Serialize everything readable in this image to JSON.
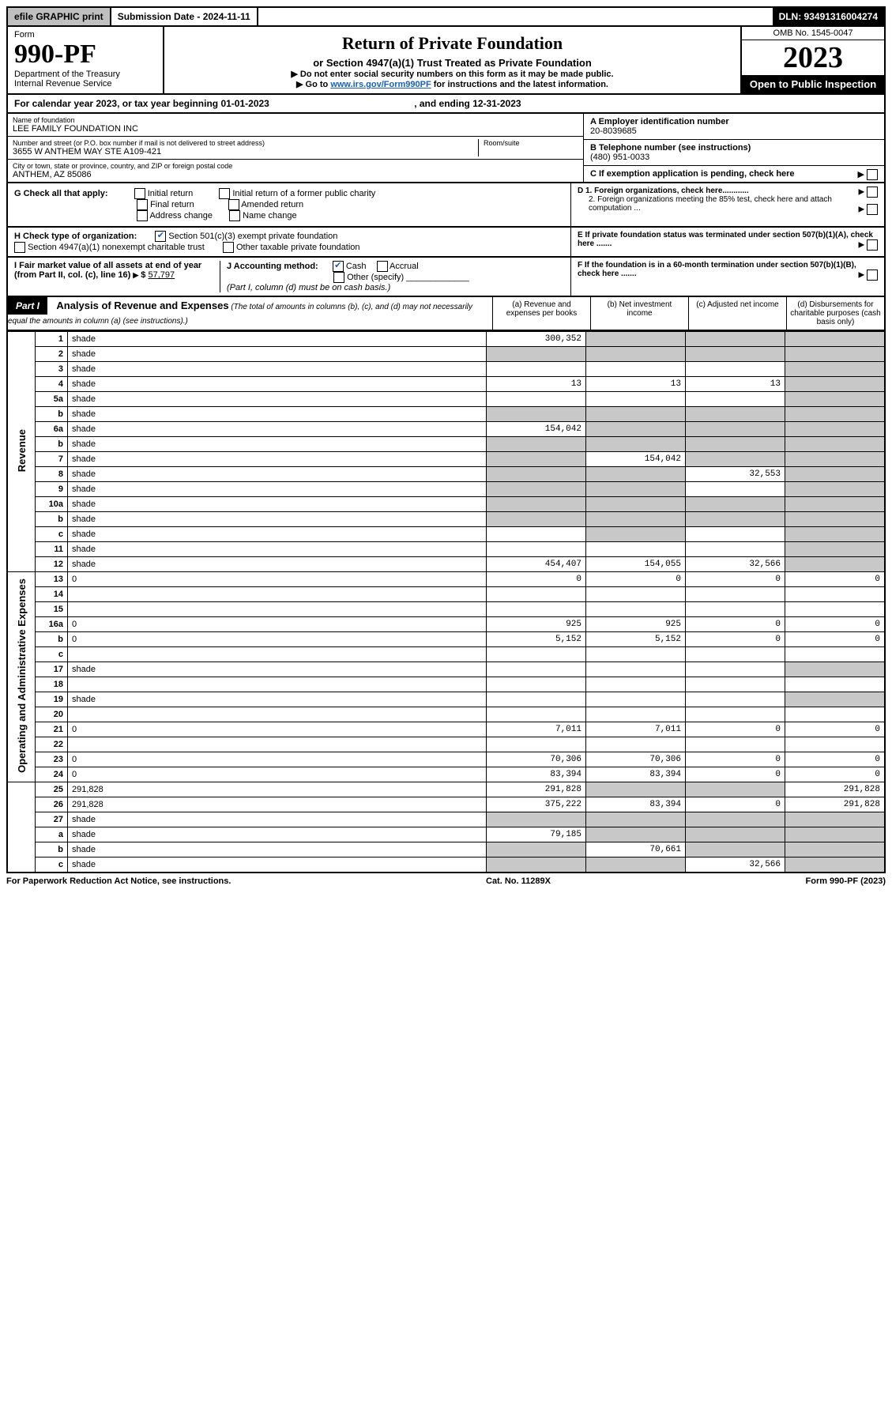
{
  "top": {
    "efile": "efile GRAPHIC print",
    "sub_label": "Submission Date - 2024-11-11",
    "dln": "DLN: 93491316004274"
  },
  "header": {
    "form_word": "Form",
    "form_no": "990-PF",
    "dept1": "Department of the Treasury",
    "dept2": "Internal Revenue Service",
    "title": "Return of Private Foundation",
    "subtitle": "or Section 4947(a)(1) Trust Treated as Private Foundation",
    "instr1": "▶ Do not enter social security numbers on this form as it may be made public.",
    "instr2_pre": "▶ Go to ",
    "instr2_link": "www.irs.gov/Form990PF",
    "instr2_post": " for instructions and the latest information.",
    "omb": "OMB No. 1545-0047",
    "year": "2023",
    "open": "Open to Public Inspection"
  },
  "cal_year": {
    "text_pre": "For calendar year 2023, or tax year beginning ",
    "begin": "01-01-2023",
    "mid": " , and ending ",
    "end": "12-31-2023"
  },
  "entity": {
    "name_lbl": "Name of foundation",
    "name": "LEE FAMILY FOUNDATION INC",
    "addr_lbl": "Number and street (or P.O. box number if mail is not delivered to street address)",
    "addr": "3655 W ANTHEM WAY STE A109-421",
    "room_lbl": "Room/suite",
    "city_lbl": "City or town, state or province, country, and ZIP or foreign postal code",
    "city": "ANTHEM, AZ  85086",
    "a_lbl": "A Employer identification number",
    "ein": "20-8039685",
    "b_lbl": "B Telephone number (see instructions)",
    "phone": "(480) 951-0033",
    "c_lbl": "C If exemption application is pending, check here"
  },
  "g": {
    "lbl": "G Check all that apply:",
    "o1": "Initial return",
    "o2": "Initial return of a former public charity",
    "o3": "Final return",
    "o4": "Amended return",
    "o5": "Address change",
    "o6": "Name change"
  },
  "d": {
    "d1": "D 1. Foreign organizations, check here............",
    "d2": "2. Foreign organizations meeting the 85% test, check here and attach computation ..."
  },
  "h": {
    "lbl": "H Check type of organization:",
    "o1": "Section 501(c)(3) exempt private foundation",
    "o2": "Section 4947(a)(1) nonexempt charitable trust",
    "o3": "Other taxable private foundation"
  },
  "e": {
    "txt": "E  If private foundation status was terminated under section 507(b)(1)(A), check here ......."
  },
  "i": {
    "lbl": "I Fair market value of all assets at end of year (from Part II, col. (c), line 16)",
    "val": "57,797",
    "j_lbl": "J Accounting method:",
    "j_cash": "Cash",
    "j_accr": "Accrual",
    "j_other": "Other (specify)",
    "j_note": "(Part I, column (d) must be on cash basis.)"
  },
  "f": {
    "txt": "F  If the foundation is in a 60-month termination under section 507(b)(1)(B), check here ......."
  },
  "part1": {
    "hdr": "Part I",
    "title": "Analysis of Revenue and Expenses",
    "title_note": "(The total of amounts in columns (b), (c), and (d) may not necessarily equal the amounts in column (a) (see instructions).)",
    "col_a": "(a)   Revenue and expenses per books",
    "col_b": "(b)   Net investment income",
    "col_c": "(c)   Adjusted net income",
    "col_d": "(d)   Disbursements for charitable purposes (cash basis only)"
  },
  "sections": {
    "rev": "Revenue",
    "exp": "Operating and Administrative Expenses"
  },
  "rows": [
    {
      "n": "1",
      "d": "shade",
      "a": "300,352",
      "b": "shade",
      "c": "shade"
    },
    {
      "n": "2",
      "d": "shade",
      "a": "shade",
      "b": "shade",
      "c": "shade"
    },
    {
      "n": "3",
      "d": "shade",
      "a": "",
      "b": "",
      "c": ""
    },
    {
      "n": "4",
      "d": "shade",
      "a": "13",
      "b": "13",
      "c": "13"
    },
    {
      "n": "5a",
      "d": "shade",
      "a": "",
      "b": "",
      "c": ""
    },
    {
      "n": "b",
      "d": "shade",
      "a": "shade",
      "b": "shade",
      "c": "shade"
    },
    {
      "n": "6a",
      "d": "shade",
      "a": "154,042",
      "b": "shade",
      "c": "shade"
    },
    {
      "n": "b",
      "d": "shade",
      "a": "shade",
      "b": "shade",
      "c": "shade"
    },
    {
      "n": "7",
      "d": "shade",
      "a": "shade",
      "b": "154,042",
      "c": "shade"
    },
    {
      "n": "8",
      "d": "shade",
      "a": "shade",
      "b": "shade",
      "c": "32,553"
    },
    {
      "n": "9",
      "d": "shade",
      "a": "shade",
      "b": "shade",
      "c": ""
    },
    {
      "n": "10a",
      "d": "shade",
      "a": "shade",
      "b": "shade",
      "c": "shade"
    },
    {
      "n": "b",
      "d": "shade",
      "a": "shade",
      "b": "shade",
      "c": "shade"
    },
    {
      "n": "c",
      "d": "shade",
      "a": "",
      "b": "shade",
      "c": ""
    },
    {
      "n": "11",
      "d": "shade",
      "a": "",
      "b": "",
      "c": ""
    },
    {
      "n": "12",
      "d": "shade",
      "a": "454,407",
      "b": "154,055",
      "c": "32,566"
    },
    {
      "n": "13",
      "d": "0",
      "a": "0",
      "b": "0",
      "c": "0"
    },
    {
      "n": "14",
      "d": "",
      "a": "",
      "b": "",
      "c": ""
    },
    {
      "n": "15",
      "d": "",
      "a": "",
      "b": "",
      "c": ""
    },
    {
      "n": "16a",
      "d": "0",
      "a": "925",
      "b": "925",
      "c": "0"
    },
    {
      "n": "b",
      "d": "0",
      "a": "5,152",
      "b": "5,152",
      "c": "0"
    },
    {
      "n": "c",
      "d": "",
      "a": "",
      "b": "",
      "c": ""
    },
    {
      "n": "17",
      "d": "shade",
      "a": "",
      "b": "",
      "c": ""
    },
    {
      "n": "18",
      "d": "",
      "a": "",
      "b": "",
      "c": ""
    },
    {
      "n": "19",
      "d": "shade",
      "a": "",
      "b": "",
      "c": ""
    },
    {
      "n": "20",
      "d": "",
      "a": "",
      "b": "",
      "c": ""
    },
    {
      "n": "21",
      "d": "0",
      "a": "7,011",
      "b": "7,011",
      "c": "0"
    },
    {
      "n": "22",
      "d": "",
      "a": "",
      "b": "",
      "c": ""
    },
    {
      "n": "23",
      "d": "0",
      "a": "70,306",
      "b": "70,306",
      "c": "0"
    },
    {
      "n": "24",
      "d": "0",
      "a": "83,394",
      "b": "83,394",
      "c": "0"
    },
    {
      "n": "25",
      "d": "291,828",
      "a": "291,828",
      "b": "shade",
      "c": "shade"
    },
    {
      "n": "26",
      "d": "291,828",
      "a": "375,222",
      "b": "83,394",
      "c": "0"
    },
    {
      "n": "27",
      "d": "shade",
      "a": "shade",
      "b": "shade",
      "c": "shade"
    },
    {
      "n": "a",
      "d": "shade",
      "a": "79,185",
      "b": "shade",
      "c": "shade"
    },
    {
      "n": "b",
      "d": "shade",
      "a": "shade",
      "b": "70,661",
      "c": "shade"
    },
    {
      "n": "c",
      "d": "shade",
      "a": "shade",
      "b": "shade",
      "c": "32,566"
    }
  ],
  "footer": {
    "left": "For Paperwork Reduction Act Notice, see instructions.",
    "mid": "Cat. No. 11289X",
    "right": "Form 990-PF (2023)"
  }
}
